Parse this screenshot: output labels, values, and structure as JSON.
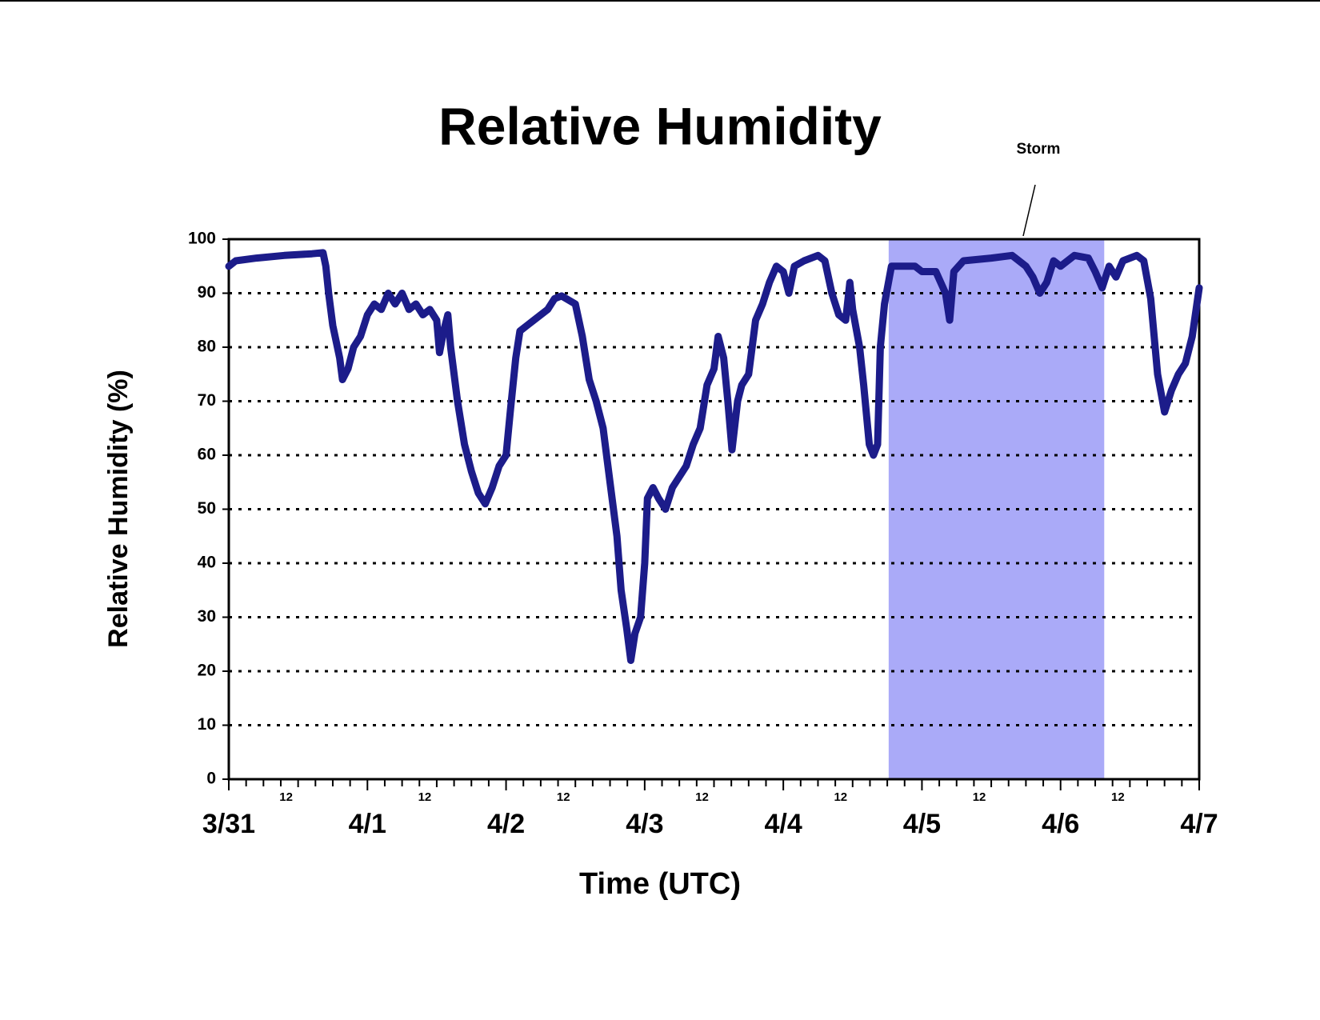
{
  "chart_data": {
    "type": "line",
    "title": "Relative Humidity",
    "xlabel": "Time (UTC)",
    "ylabel": "Relative Humidity (%)",
    "annotation": {
      "text": "Storm",
      "xrange": [
        4.76,
        6.315
      ],
      "color": "#aaaaf8"
    },
    "x": [
      0.0,
      0.05,
      0.2,
      0.4,
      0.6,
      0.68,
      0.7,
      0.72,
      0.75,
      0.8,
      0.82,
      0.86,
      0.9,
      0.95,
      1.0,
      1.05,
      1.1,
      1.15,
      1.2,
      1.25,
      1.3,
      1.35,
      1.4,
      1.45,
      1.5,
      1.52,
      1.55,
      1.58,
      1.6,
      1.65,
      1.7,
      1.75,
      1.8,
      1.85,
      1.9,
      1.95,
      2.0,
      2.03,
      2.07,
      2.1,
      2.15,
      2.2,
      2.3,
      2.35,
      2.4,
      2.5,
      2.55,
      2.6,
      2.65,
      2.7,
      2.75,
      2.8,
      2.83,
      2.87,
      2.9,
      2.93,
      2.97,
      3.0,
      3.02,
      3.06,
      3.1,
      3.15,
      3.2,
      3.3,
      3.35,
      3.4,
      3.45,
      3.5,
      3.53,
      3.57,
      3.6,
      3.63,
      3.67,
      3.7,
      3.75,
      3.8,
      3.85,
      3.9,
      3.95,
      4.0,
      4.04,
      4.08,
      4.15,
      4.25,
      4.3,
      4.35,
      4.4,
      4.45,
      4.48,
      4.5,
      4.55,
      4.58,
      4.62,
      4.65,
      4.68,
      4.7,
      4.73,
      4.78,
      4.85,
      4.95,
      5.0,
      5.1,
      5.17,
      5.2,
      5.23,
      5.3,
      5.5,
      5.65,
      5.75,
      5.8,
      5.85,
      5.9,
      5.95,
      6.0,
      6.1,
      6.2,
      6.25,
      6.3,
      6.35,
      6.4,
      6.45,
      6.55,
      6.6,
      6.65,
      6.7,
      6.75,
      6.8,
      6.85,
      6.9,
      6.95,
      7.0
    ],
    "series": [
      {
        "name": "Relative Humidity",
        "color": "#1c1c8a",
        "values": [
          95,
          96,
          96.5,
          97,
          97.3,
          97.5,
          95,
          90,
          84,
          78,
          74,
          76,
          80,
          82,
          86,
          88,
          87,
          90,
          88,
          90,
          87,
          88,
          86,
          87,
          85,
          79,
          83,
          86,
          80,
          70,
          62,
          57,
          53,
          51,
          54,
          58,
          60,
          68,
          78,
          83,
          84,
          85,
          87,
          89,
          89.5,
          88,
          82,
          74,
          70,
          65,
          55,
          45,
          35,
          28,
          22,
          27,
          30,
          40,
          52,
          54,
          52,
          50,
          54,
          58,
          62,
          65,
          73,
          76,
          82,
          78,
          70,
          61,
          70,
          73,
          75,
          85,
          88,
          92,
          95,
          94,
          90,
          95,
          96,
          97,
          96,
          90,
          86,
          85,
          92,
          87,
          80,
          73,
          62,
          60,
          62,
          80,
          88,
          95,
          95,
          95,
          94,
          94,
          90,
          85,
          94,
          96,
          96.5,
          97,
          95,
          93,
          90,
          92,
          96,
          95,
          97,
          96.5,
          94,
          91,
          95,
          93,
          96,
          97,
          96,
          89,
          75,
          68,
          72,
          75,
          77,
          82,
          91
        ]
      }
    ],
    "xlim": [
      0,
      7
    ],
    "ylim": [
      0,
      100
    ],
    "yticks": [
      0,
      10,
      20,
      30,
      40,
      50,
      60,
      70,
      80,
      90,
      100
    ],
    "xticks": [
      {
        "value": 0,
        "label": "3/31"
      },
      {
        "value": 0.5,
        "label": "12"
      },
      {
        "value": 1,
        "label": "4/1"
      },
      {
        "value": 1.5,
        "label": "12"
      },
      {
        "value": 2,
        "label": "4/2"
      },
      {
        "value": 2.5,
        "label": "12"
      },
      {
        "value": 3,
        "label": "4/3"
      },
      {
        "value": 3.5,
        "label": "12"
      },
      {
        "value": 4,
        "label": "4/4"
      },
      {
        "value": 4.5,
        "label": "12"
      },
      {
        "value": 5,
        "label": "4/5"
      },
      {
        "value": 5.5,
        "label": "12"
      },
      {
        "value": 6,
        "label": "4/6"
      },
      {
        "value": 6.5,
        "label": "12"
      },
      {
        "value": 7,
        "label": "4/7"
      }
    ],
    "xminorticks": [
      0.125,
      0.25,
      0.375,
      0.625,
      0.75,
      0.875,
      1.125,
      1.25,
      1.375,
      1.625,
      1.75,
      1.875,
      2.125,
      2.25,
      2.375,
      2.625,
      2.75,
      2.875,
      3.125,
      3.25,
      3.375,
      3.625,
      3.75,
      3.875,
      4.125,
      4.25,
      4.375,
      4.625,
      4.75,
      4.875,
      5.125,
      5.25,
      5.375,
      5.625,
      5.75,
      5.875,
      6.125,
      6.25,
      6.375,
      6.625,
      6.75,
      6.875
    ],
    "grid": true
  }
}
